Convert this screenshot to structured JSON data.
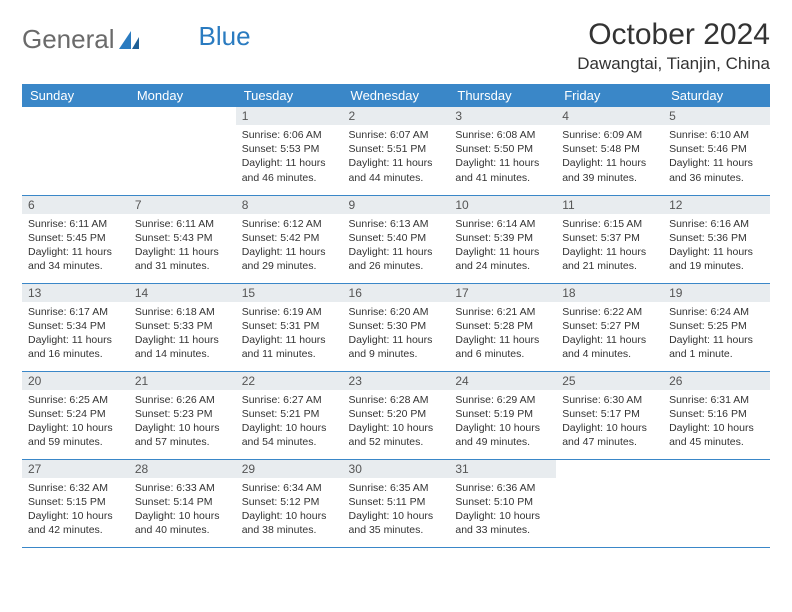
{
  "logo": {
    "part1": "General",
    "part2": "Blue"
  },
  "title": "October 2024",
  "location": "Dawangtai, Tianjin, China",
  "colors": {
    "header_bg": "#3a87c8",
    "header_text": "#ffffff",
    "daynum_bg": "#e8ecef",
    "body_text": "#333333",
    "logo_gray": "#6a6a6a",
    "logo_blue": "#2a7bc0"
  },
  "weekdays": [
    "Sunday",
    "Monday",
    "Tuesday",
    "Wednesday",
    "Thursday",
    "Friday",
    "Saturday"
  ],
  "weeks": [
    [
      null,
      null,
      {
        "n": "1",
        "sr": "Sunrise: 6:06 AM",
        "ss": "Sunset: 5:53 PM",
        "dl": "Daylight: 11 hours and 46 minutes."
      },
      {
        "n": "2",
        "sr": "Sunrise: 6:07 AM",
        "ss": "Sunset: 5:51 PM",
        "dl": "Daylight: 11 hours and 44 minutes."
      },
      {
        "n": "3",
        "sr": "Sunrise: 6:08 AM",
        "ss": "Sunset: 5:50 PM",
        "dl": "Daylight: 11 hours and 41 minutes."
      },
      {
        "n": "4",
        "sr": "Sunrise: 6:09 AM",
        "ss": "Sunset: 5:48 PM",
        "dl": "Daylight: 11 hours and 39 minutes."
      },
      {
        "n": "5",
        "sr": "Sunrise: 6:10 AM",
        "ss": "Sunset: 5:46 PM",
        "dl": "Daylight: 11 hours and 36 minutes."
      }
    ],
    [
      {
        "n": "6",
        "sr": "Sunrise: 6:11 AM",
        "ss": "Sunset: 5:45 PM",
        "dl": "Daylight: 11 hours and 34 minutes."
      },
      {
        "n": "7",
        "sr": "Sunrise: 6:11 AM",
        "ss": "Sunset: 5:43 PM",
        "dl": "Daylight: 11 hours and 31 minutes."
      },
      {
        "n": "8",
        "sr": "Sunrise: 6:12 AM",
        "ss": "Sunset: 5:42 PM",
        "dl": "Daylight: 11 hours and 29 minutes."
      },
      {
        "n": "9",
        "sr": "Sunrise: 6:13 AM",
        "ss": "Sunset: 5:40 PM",
        "dl": "Daylight: 11 hours and 26 minutes."
      },
      {
        "n": "10",
        "sr": "Sunrise: 6:14 AM",
        "ss": "Sunset: 5:39 PM",
        "dl": "Daylight: 11 hours and 24 minutes."
      },
      {
        "n": "11",
        "sr": "Sunrise: 6:15 AM",
        "ss": "Sunset: 5:37 PM",
        "dl": "Daylight: 11 hours and 21 minutes."
      },
      {
        "n": "12",
        "sr": "Sunrise: 6:16 AM",
        "ss": "Sunset: 5:36 PM",
        "dl": "Daylight: 11 hours and 19 minutes."
      }
    ],
    [
      {
        "n": "13",
        "sr": "Sunrise: 6:17 AM",
        "ss": "Sunset: 5:34 PM",
        "dl": "Daylight: 11 hours and 16 minutes."
      },
      {
        "n": "14",
        "sr": "Sunrise: 6:18 AM",
        "ss": "Sunset: 5:33 PM",
        "dl": "Daylight: 11 hours and 14 minutes."
      },
      {
        "n": "15",
        "sr": "Sunrise: 6:19 AM",
        "ss": "Sunset: 5:31 PM",
        "dl": "Daylight: 11 hours and 11 minutes."
      },
      {
        "n": "16",
        "sr": "Sunrise: 6:20 AM",
        "ss": "Sunset: 5:30 PM",
        "dl": "Daylight: 11 hours and 9 minutes."
      },
      {
        "n": "17",
        "sr": "Sunrise: 6:21 AM",
        "ss": "Sunset: 5:28 PM",
        "dl": "Daylight: 11 hours and 6 minutes."
      },
      {
        "n": "18",
        "sr": "Sunrise: 6:22 AM",
        "ss": "Sunset: 5:27 PM",
        "dl": "Daylight: 11 hours and 4 minutes."
      },
      {
        "n": "19",
        "sr": "Sunrise: 6:24 AM",
        "ss": "Sunset: 5:25 PM",
        "dl": "Daylight: 11 hours and 1 minute."
      }
    ],
    [
      {
        "n": "20",
        "sr": "Sunrise: 6:25 AM",
        "ss": "Sunset: 5:24 PM",
        "dl": "Daylight: 10 hours and 59 minutes."
      },
      {
        "n": "21",
        "sr": "Sunrise: 6:26 AM",
        "ss": "Sunset: 5:23 PM",
        "dl": "Daylight: 10 hours and 57 minutes."
      },
      {
        "n": "22",
        "sr": "Sunrise: 6:27 AM",
        "ss": "Sunset: 5:21 PM",
        "dl": "Daylight: 10 hours and 54 minutes."
      },
      {
        "n": "23",
        "sr": "Sunrise: 6:28 AM",
        "ss": "Sunset: 5:20 PM",
        "dl": "Daylight: 10 hours and 52 minutes."
      },
      {
        "n": "24",
        "sr": "Sunrise: 6:29 AM",
        "ss": "Sunset: 5:19 PM",
        "dl": "Daylight: 10 hours and 49 minutes."
      },
      {
        "n": "25",
        "sr": "Sunrise: 6:30 AM",
        "ss": "Sunset: 5:17 PM",
        "dl": "Daylight: 10 hours and 47 minutes."
      },
      {
        "n": "26",
        "sr": "Sunrise: 6:31 AM",
        "ss": "Sunset: 5:16 PM",
        "dl": "Daylight: 10 hours and 45 minutes."
      }
    ],
    [
      {
        "n": "27",
        "sr": "Sunrise: 6:32 AM",
        "ss": "Sunset: 5:15 PM",
        "dl": "Daylight: 10 hours and 42 minutes."
      },
      {
        "n": "28",
        "sr": "Sunrise: 6:33 AM",
        "ss": "Sunset: 5:14 PM",
        "dl": "Daylight: 10 hours and 40 minutes."
      },
      {
        "n": "29",
        "sr": "Sunrise: 6:34 AM",
        "ss": "Sunset: 5:12 PM",
        "dl": "Daylight: 10 hours and 38 minutes."
      },
      {
        "n": "30",
        "sr": "Sunrise: 6:35 AM",
        "ss": "Sunset: 5:11 PM",
        "dl": "Daylight: 10 hours and 35 minutes."
      },
      {
        "n": "31",
        "sr": "Sunrise: 6:36 AM",
        "ss": "Sunset: 5:10 PM",
        "dl": "Daylight: 10 hours and 33 minutes."
      },
      null,
      null
    ]
  ]
}
